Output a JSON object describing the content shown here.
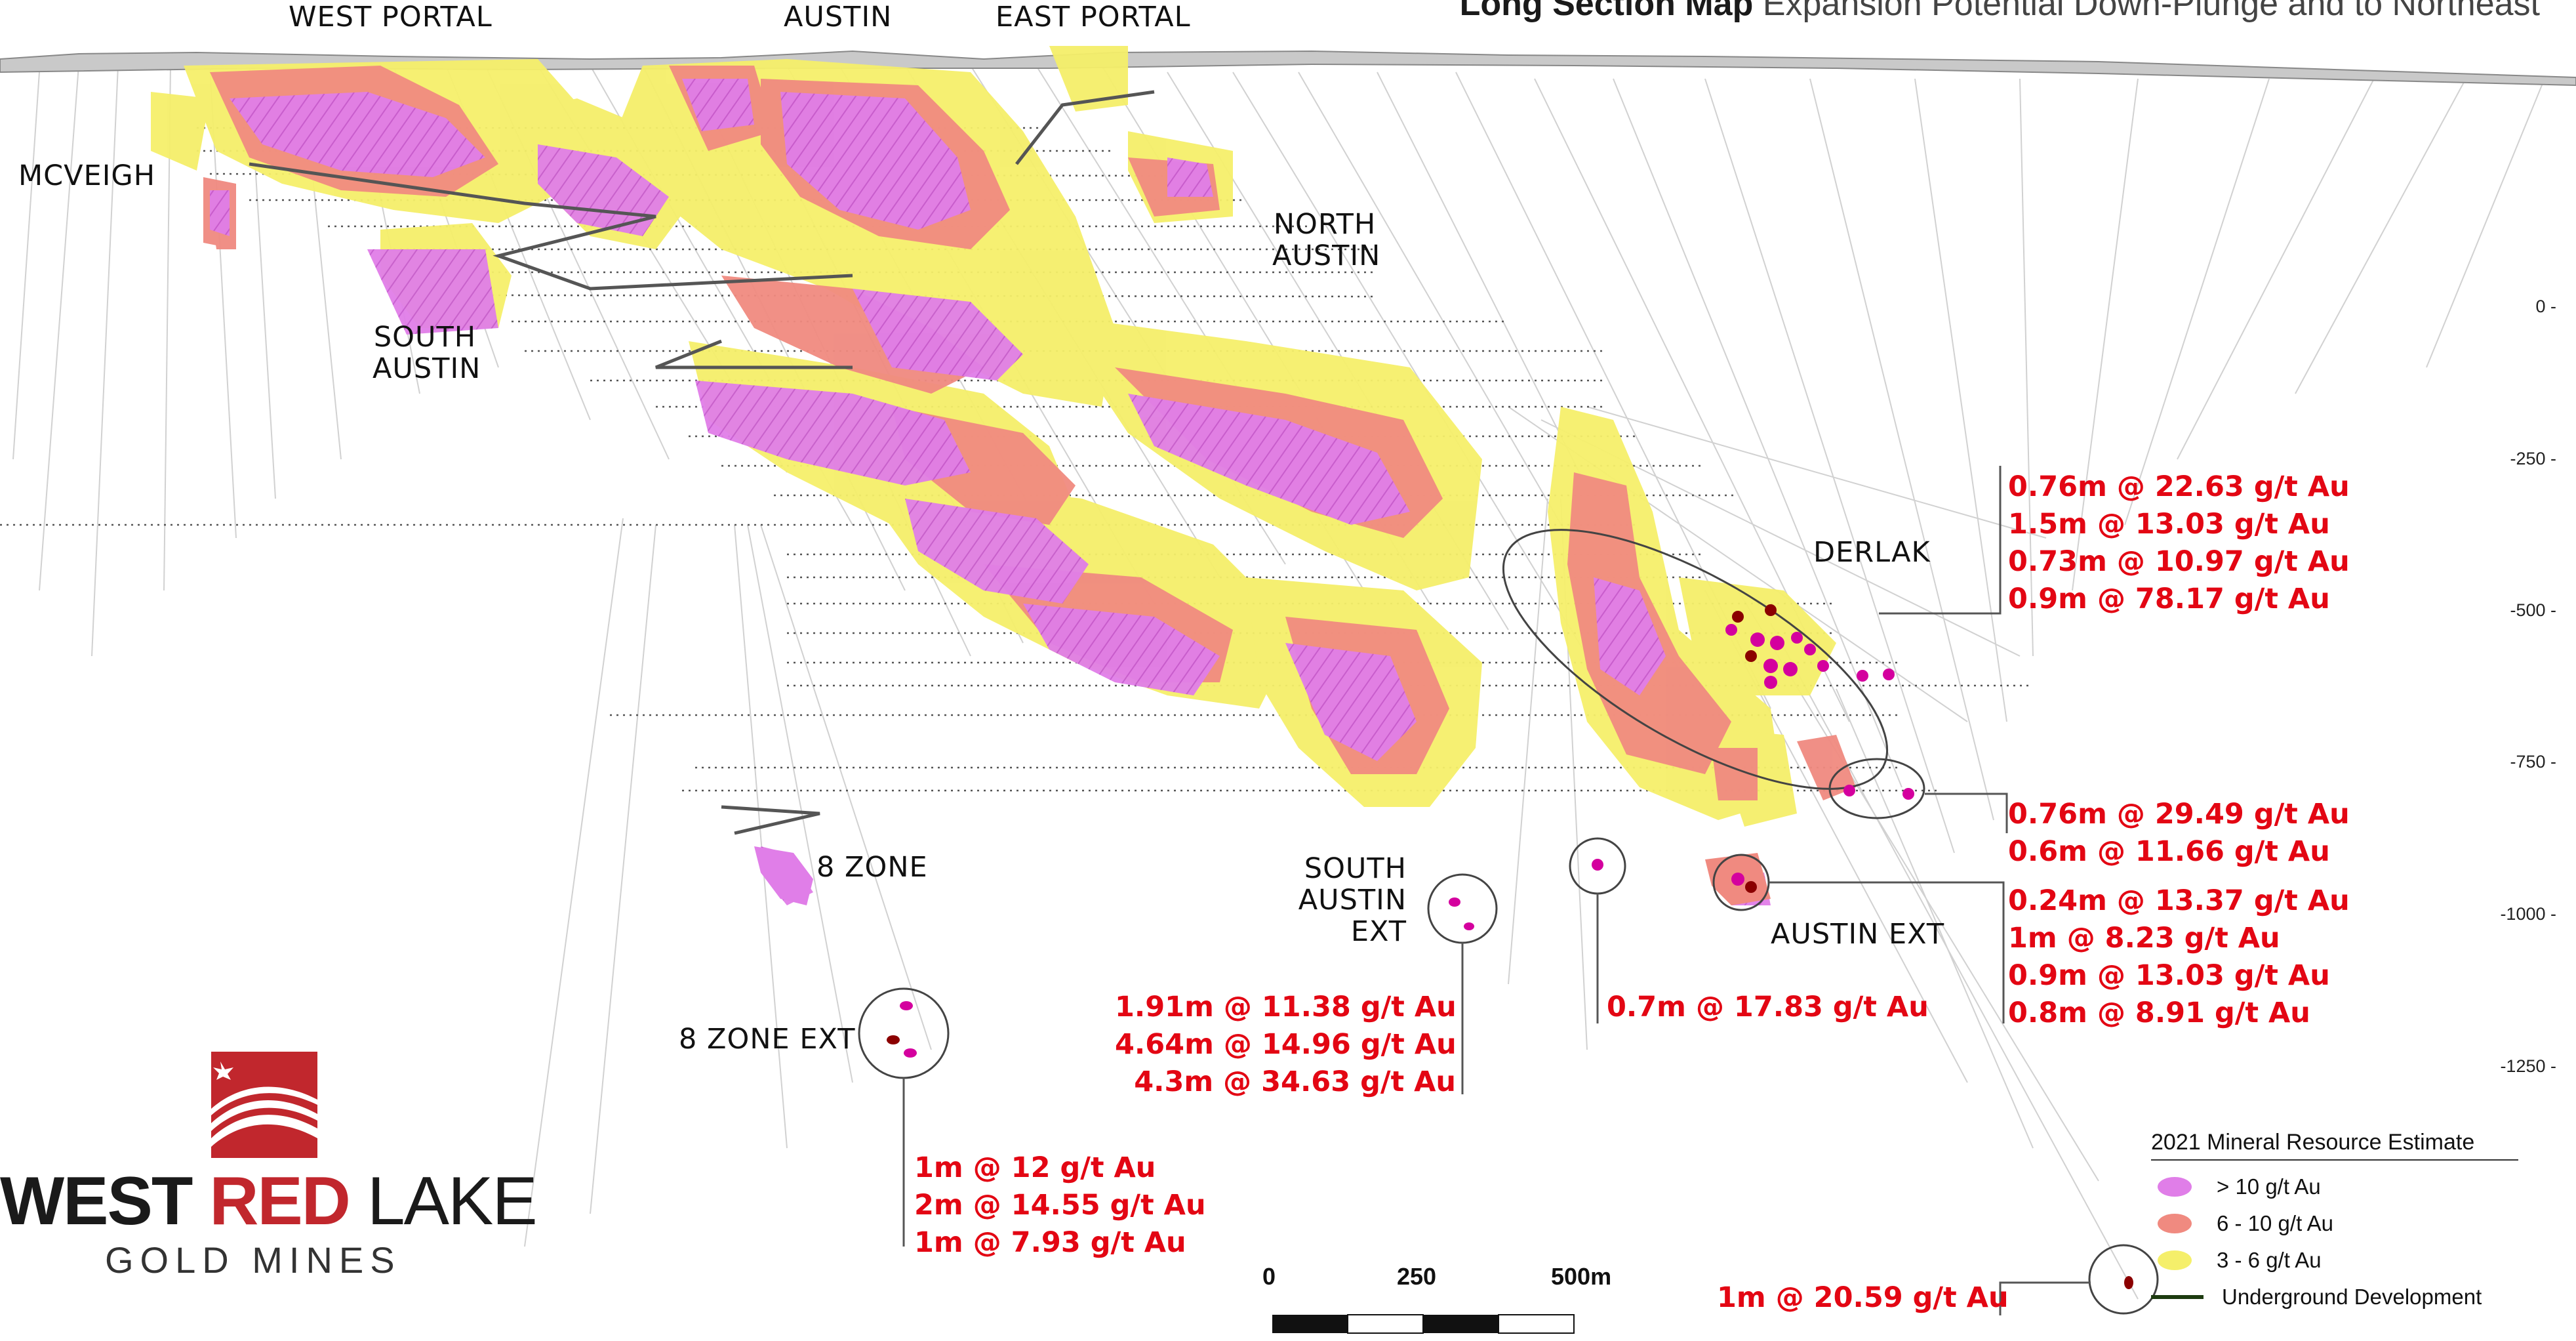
{
  "title": {
    "main": "Long Section Map",
    "subtitle": "Expansion Potential Down-Plunge and to Northeast"
  },
  "labels": {
    "west_portal": "WEST PORTAL",
    "austin": "AUSTIN",
    "east_portal": "EAST PORTAL",
    "mcveigh": "MCVEIGH",
    "north_austin_1": "NORTH",
    "north_austin_2": "AUSTIN",
    "south_austin_1": "SOUTH",
    "south_austin_2": "AUSTIN",
    "derlak": "DERLAK",
    "eight_zone": "8 ZONE",
    "eight_zone_ext": "8 ZONE EXT",
    "south_austin_ext_1": "SOUTH",
    "south_austin_ext_2": "AUSTIN",
    "south_austin_ext_3": "EXT",
    "austin_ext": "AUSTIN EXT"
  },
  "elevations": [
    "0 -",
    "-250 -",
    "-500 -",
    "-750 -",
    "-1000 -",
    "-1250 -"
  ],
  "intercepts": {
    "derlak": [
      "0.76m @ 22.63 g/t Au",
      "1.5m @ 13.03 g/t Au",
      "0.73m @ 10.97 g/t Au",
      "0.9m @ 78.17 g/t Au"
    ],
    "mid_east": [
      "0.76m @ 29.49 g/t Au",
      "0.6m @ 11.66 g/t Au"
    ],
    "austin_ext": [
      "0.24m @ 13.37 g/t Au",
      "1m @ 8.23 g/t Au",
      "0.9m @ 13.03 g/t Au",
      "0.8m @ 8.91 g/t Au"
    ],
    "south_austin_ext": [
      "1.91m @ 11.38 g/t Au",
      "4.64m @ 14.96 g/t Au",
      "4.3m @ 34.63 g/t Au"
    ],
    "single_mid": [
      "0.7m @ 17.83 g/t Au"
    ],
    "eight_zone_ext": [
      "1m @ 12 g/t Au",
      "2m @ 14.55 g/t Au",
      "1m @ 7.93 g/t Au"
    ],
    "deep_east": [
      "1m @ 20.59 g/t Au"
    ]
  },
  "legend": {
    "title": "2021 Mineral Resource Estimate",
    "items": [
      {
        "label": "> 10 g/t Au",
        "color": "#e07ee8"
      },
      {
        "label": "6 - 10 g/t Au",
        "color": "#f08a80"
      },
      {
        "label": "3 - 6 g/t Au",
        "color": "#f5ef6a"
      },
      {
        "label": "Underground Development",
        "color": "#1d3b10"
      }
    ]
  },
  "scale_bar": {
    "ticks": [
      "0",
      "250",
      "500m"
    ]
  },
  "logo": {
    "word1": "WEST",
    "word2": "RED",
    "word3": "LAKE",
    "sub": "GOLD MINES"
  },
  "colors": {
    "high_grade": "#e07ee8",
    "mid_grade": "#f08a80",
    "low_grade": "#f5ef6a",
    "intercept_text": "#e30613",
    "brand_red": "#c1272d",
    "hit_magenta": "#d4009e"
  }
}
